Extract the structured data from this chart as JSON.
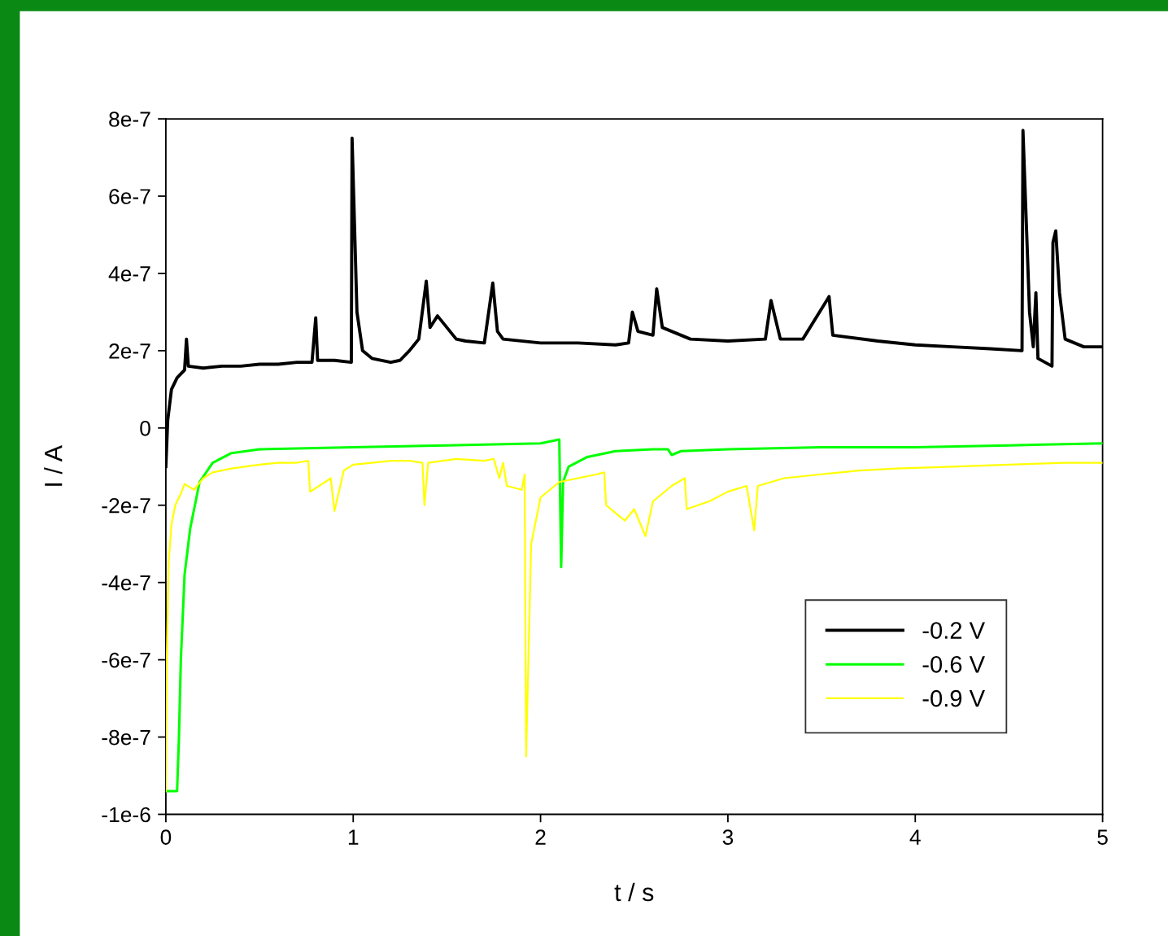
{
  "chart_data": {
    "type": "line",
    "xlabel": "t / s",
    "ylabel": "I / A",
    "xlim": [
      0,
      5
    ],
    "xticks": [
      0,
      1,
      2,
      3,
      4,
      5
    ],
    "ylim": [
      -1e-06,
      8e-07
    ],
    "yticks": [
      {
        "value": -1e-06,
        "label": "-1e-6"
      },
      {
        "value": -8e-07,
        "label": "-8e-7"
      },
      {
        "value": -6e-07,
        "label": "-6e-7"
      },
      {
        "value": -4e-07,
        "label": "-4e-7"
      },
      {
        "value": -2e-07,
        "label": "-2e-7"
      },
      0,
      {
        "value": 2e-07,
        "label": "2e-7"
      },
      {
        "value": 4e-07,
        "label": "4e-7"
      },
      {
        "value": 6e-07,
        "label": "6e-7"
      },
      {
        "value": 8e-07,
        "label": "8e-7"
      }
    ],
    "grid": false,
    "legend": "bottom right",
    "marker": "none",
    "line_style": "solid",
    "series": [
      {
        "name": "-0.2 V",
        "color": "#000000",
        "x": [
          0,
          0.01,
          0.03,
          0.06,
          0.1,
          0.11,
          0.12,
          0.2,
          0.3,
          0.4,
          0.5,
          0.6,
          0.7,
          0.78,
          0.8,
          0.81,
          0.9,
          0.99,
          0.994,
          1.02,
          1.05,
          1.1,
          1.2,
          1.25,
          1.3,
          1.35,
          1.39,
          1.41,
          1.45,
          1.5,
          1.55,
          1.6,
          1.7,
          1.745,
          1.77,
          1.8,
          2.0,
          2.2,
          2.4,
          2.47,
          2.49,
          2.52,
          2.6,
          2.62,
          2.65,
          2.8,
          3.0,
          3.2,
          3.23,
          3.28,
          3.4,
          3.54,
          3.56,
          3.8,
          4.0,
          4.2,
          4.4,
          4.57,
          4.575,
          4.61,
          4.63,
          4.644,
          4.655,
          4.73,
          4.735,
          4.75,
          4.77,
          4.8,
          4.9,
          5.0
        ],
        "values": [
          -1e-07,
          2e-08,
          1e-07,
          1.3e-07,
          1.5e-07,
          2.3e-07,
          1.6e-07,
          1.55e-07,
          1.6e-07,
          1.6e-07,
          1.65e-07,
          1.65e-07,
          1.7e-07,
          1.7e-07,
          2.85e-07,
          1.75e-07,
          1.75e-07,
          1.7e-07,
          7.5e-07,
          3e-07,
          2e-07,
          1.8e-07,
          1.7e-07,
          1.75e-07,
          2e-07,
          2.3e-07,
          3.8e-07,
          2.6e-07,
          2.9e-07,
          2.6e-07,
          2.3e-07,
          2.25e-07,
          2.2e-07,
          3.75e-07,
          2.5e-07,
          2.3e-07,
          2.2e-07,
          2.2e-07,
          2.15e-07,
          2.2e-07,
          3e-07,
          2.5e-07,
          2.4e-07,
          3.6e-07,
          2.6e-07,
          2.3e-07,
          2.25e-07,
          2.3e-07,
          3.3e-07,
          2.3e-07,
          2.3e-07,
          3.4e-07,
          2.4e-07,
          2.25e-07,
          2.15e-07,
          2.1e-07,
          2.05e-07,
          2e-07,
          7.7e-07,
          3e-07,
          2.1e-07,
          3.5e-07,
          1.8e-07,
          1.6e-07,
          4.8e-07,
          5.1e-07,
          3.5e-07,
          2.3e-07,
          2.1e-07,
          2.1e-07
        ]
      },
      {
        "name": "-0.6 V",
        "color": "#00ff00",
        "x": [
          0,
          0.06,
          0.07,
          0.08,
          0.1,
          0.13,
          0.18,
          0.25,
          0.35,
          0.5,
          1.0,
          1.5,
          2.0,
          2.1,
          2.11,
          2.12,
          2.15,
          2.25,
          2.4,
          2.6,
          2.68,
          2.7,
          2.75,
          3.0,
          3.5,
          4.0,
          4.5,
          5.0
        ],
        "values": [
          -9.4e-07,
          -9.4e-07,
          -8e-07,
          -6e-07,
          -3.8e-07,
          -2.6e-07,
          -1.4e-07,
          -9e-08,
          -6.5e-08,
          -5.5e-08,
          -5e-08,
          -4.5e-08,
          -4e-08,
          -3e-08,
          -3.6e-07,
          -1.4e-07,
          -1e-07,
          -7.5e-08,
          -6e-08,
          -5.5e-08,
          -5.5e-08,
          -7e-08,
          -6e-08,
          -5.5e-08,
          -5e-08,
          -5e-08,
          -4.5e-08,
          -4e-08
        ]
      },
      {
        "name": "-0.9 V",
        "color": "#ffff00",
        "x": [
          0,
          0.005,
          0.015,
          0.03,
          0.05,
          0.08,
          0.1,
          0.15,
          0.2,
          0.25,
          0.35,
          0.5,
          0.6,
          0.7,
          0.76,
          0.77,
          0.85,
          0.88,
          0.9,
          0.95,
          1.0,
          1.1,
          1.2,
          1.3,
          1.37,
          1.38,
          1.4,
          1.55,
          1.7,
          1.75,
          1.78,
          1.8,
          1.82,
          1.9,
          1.915,
          1.923,
          1.95,
          2.0,
          2.05,
          2.1,
          2.2,
          2.3,
          2.34,
          2.35,
          2.45,
          2.5,
          2.56,
          2.6,
          2.7,
          2.77,
          2.78,
          2.9,
          3.0,
          3.1,
          3.14,
          3.16,
          3.3,
          3.5,
          3.7,
          3.9,
          4.2,
          4.5,
          4.8,
          5.0
        ],
        "values": [
          -9.4e-07,
          -6e-07,
          -3.5e-07,
          -2.5e-07,
          -2e-07,
          -1.7e-07,
          -1.45e-07,
          -1.6e-07,
          -1.3e-07,
          -1.15e-07,
          -1.05e-07,
          -9.5e-08,
          -9e-08,
          -9e-08,
          -8.5e-08,
          -1.65e-07,
          -1.4e-07,
          -1.3e-07,
          -2.15e-07,
          -1.1e-07,
          -9.5e-08,
          -9e-08,
          -8.5e-08,
          -8.5e-08,
          -9e-08,
          -2e-07,
          -9e-08,
          -8e-08,
          -8.5e-08,
          -8e-08,
          -1.3e-07,
          -9e-08,
          -1.5e-07,
          -1.6e-07,
          -1.2e-07,
          -8.5e-07,
          -3e-07,
          -1.8e-07,
          -1.6e-07,
          -1.4e-07,
          -1.3e-07,
          -1.2e-07,
          -1.15e-07,
          -2e-07,
          -2.4e-07,
          -2.1e-07,
          -2.8e-07,
          -1.9e-07,
          -1.5e-07,
          -1.3e-07,
          -2.1e-07,
          -1.9e-07,
          -1.65e-07,
          -1.5e-07,
          -2.65e-07,
          -1.5e-07,
          -1.3e-07,
          -1.2e-07,
          -1.1e-07,
          -1.05e-07,
          -1e-07,
          -9.5e-08,
          -9e-08,
          -9e-08
        ]
      }
    ]
  }
}
